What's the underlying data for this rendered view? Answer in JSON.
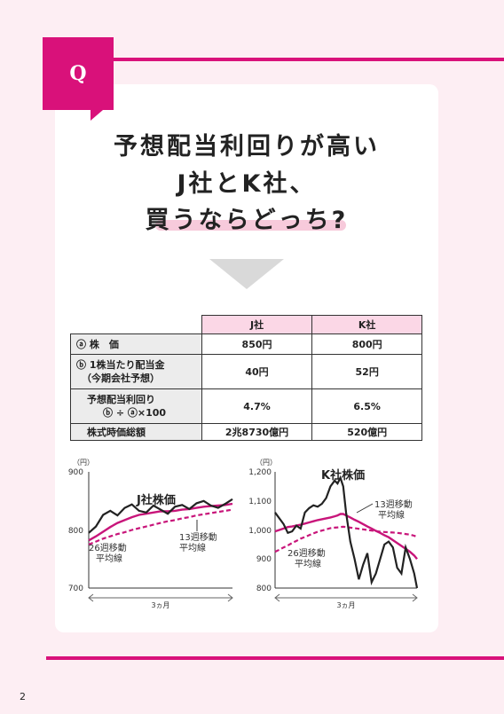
{
  "badge": "Q",
  "title": {
    "line1": "予想配当利回りが高い",
    "line2": "J社とK社、",
    "line3": "買うならどっち?"
  },
  "table": {
    "headers": [
      "J社",
      "K社"
    ],
    "rows": [
      {
        "label_lines": [
          "ⓐ 株　価"
        ],
        "values": [
          "850円",
          "800円"
        ]
      },
      {
        "label_lines": [
          "ⓑ 1株当たり配当金",
          "（今期会社予想）"
        ],
        "values": [
          "40円",
          "52円"
        ]
      },
      {
        "label_lines": [
          "予想配当利回り",
          "ⓑ ÷ ⓐ×100"
        ],
        "values": [
          "4.7%",
          "6.5%"
        ]
      },
      {
        "label_lines": [
          "株式時価総額"
        ],
        "values": [
          "2兆8730億円",
          "520億円"
        ]
      }
    ]
  },
  "charts": {
    "j": {
      "title": "J社株価",
      "yunit": "（円）",
      "yticks": [
        "900",
        "800",
        "700"
      ],
      "label13": [
        "13週移動",
        "平均線"
      ],
      "label26": [
        "26週移動",
        "平均線"
      ],
      "period": "3ヵ月"
    },
    "k": {
      "title": "K社株価",
      "yunit": "（円）",
      "yticks": [
        "1,200",
        "1,100",
        "1,000",
        "900",
        "800"
      ],
      "label13": [
        "13週移動",
        "平均線"
      ],
      "label26": [
        "26週移動",
        "平均線"
      ],
      "period": "3ヵ月"
    }
  },
  "chart_data": [
    {
      "type": "line",
      "title": "J社株価",
      "ylabel": "（円）",
      "ylim": [
        700,
        900
      ],
      "xlabel": "3ヵ月",
      "x": [
        0,
        5,
        10,
        15,
        20,
        25,
        30,
        35,
        40,
        45,
        50,
        55,
        60,
        65,
        70,
        75,
        80,
        85,
        90,
        95,
        100
      ],
      "series": [
        {
          "name": "",
          "values": [
            795,
            806,
            826,
            833,
            825,
            838,
            844,
            833,
            830,
            842,
            835,
            828,
            840,
            843,
            836,
            846,
            850,
            842,
            838,
            845,
            853
          ]
        },
        {
          "name": "13週移動平均線",
          "values": [
            782,
            789,
            797,
            805,
            812,
            817,
            822,
            826,
            828,
            830,
            832,
            832,
            833,
            835,
            836,
            838,
            840,
            841,
            842,
            843,
            845
          ]
        },
        {
          "name": "26週移動平均線",
          "values": [
            775,
            780,
            785,
            789,
            793,
            796,
            800,
            803,
            806,
            809,
            812,
            815,
            817,
            820,
            822,
            825,
            827,
            829,
            831,
            833,
            835
          ]
        }
      ]
    },
    {
      "type": "line",
      "title": "K社株価",
      "ylabel": "（円）",
      "ylim": [
        800,
        1200
      ],
      "xlabel": "3ヵ月",
      "x": [
        0,
        3,
        6,
        9,
        12,
        15,
        18,
        21,
        24,
        27,
        30,
        33,
        36,
        39,
        42,
        44,
        46,
        48,
        50,
        53,
        56,
        59,
        62,
        65,
        68,
        71,
        74,
        77,
        80,
        83,
        86,
        89,
        92,
        95,
        98,
        100
      ],
      "series": [
        {
          "name": "",
          "values": [
            1060,
            1040,
            1020,
            990,
            995,
            1015,
            1005,
            1060,
            1075,
            1085,
            1080,
            1090,
            1110,
            1150,
            1170,
            1160,
            1180,
            1150,
            1060,
            960,
            900,
            830,
            880,
            920,
            820,
            850,
            900,
            950,
            960,
            940,
            870,
            850,
            940,
            900,
            850,
            800
          ]
        },
        {
          "name": "13週移動平均線",
          "values": [
            995,
            1000,
            1005,
            1010,
            1012,
            1015,
            1018,
            1022,
            1026,
            1030,
            1034,
            1037,
            1040,
            1043,
            1047,
            1050,
            1055,
            1055,
            1050,
            1043,
            1035,
            1028,
            1020,
            1012,
            1005,
            997,
            990,
            982,
            975,
            965,
            955,
            945,
            935,
            925,
            912,
            900
          ]
        },
        {
          "name": "26週移動平均線",
          "values": [
            925,
            932,
            940,
            947,
            955,
            962,
            970,
            976,
            982,
            988,
            994,
            998,
            1002,
            1006,
            1008,
            1009,
            1010,
            1011,
            1010,
            1008,
            1006,
            1004,
            1002,
            1000,
            998,
            996,
            994,
            993,
            992,
            991,
            990,
            988,
            986,
            984,
            980,
            976
          ]
        }
      ]
    }
  ]
}
